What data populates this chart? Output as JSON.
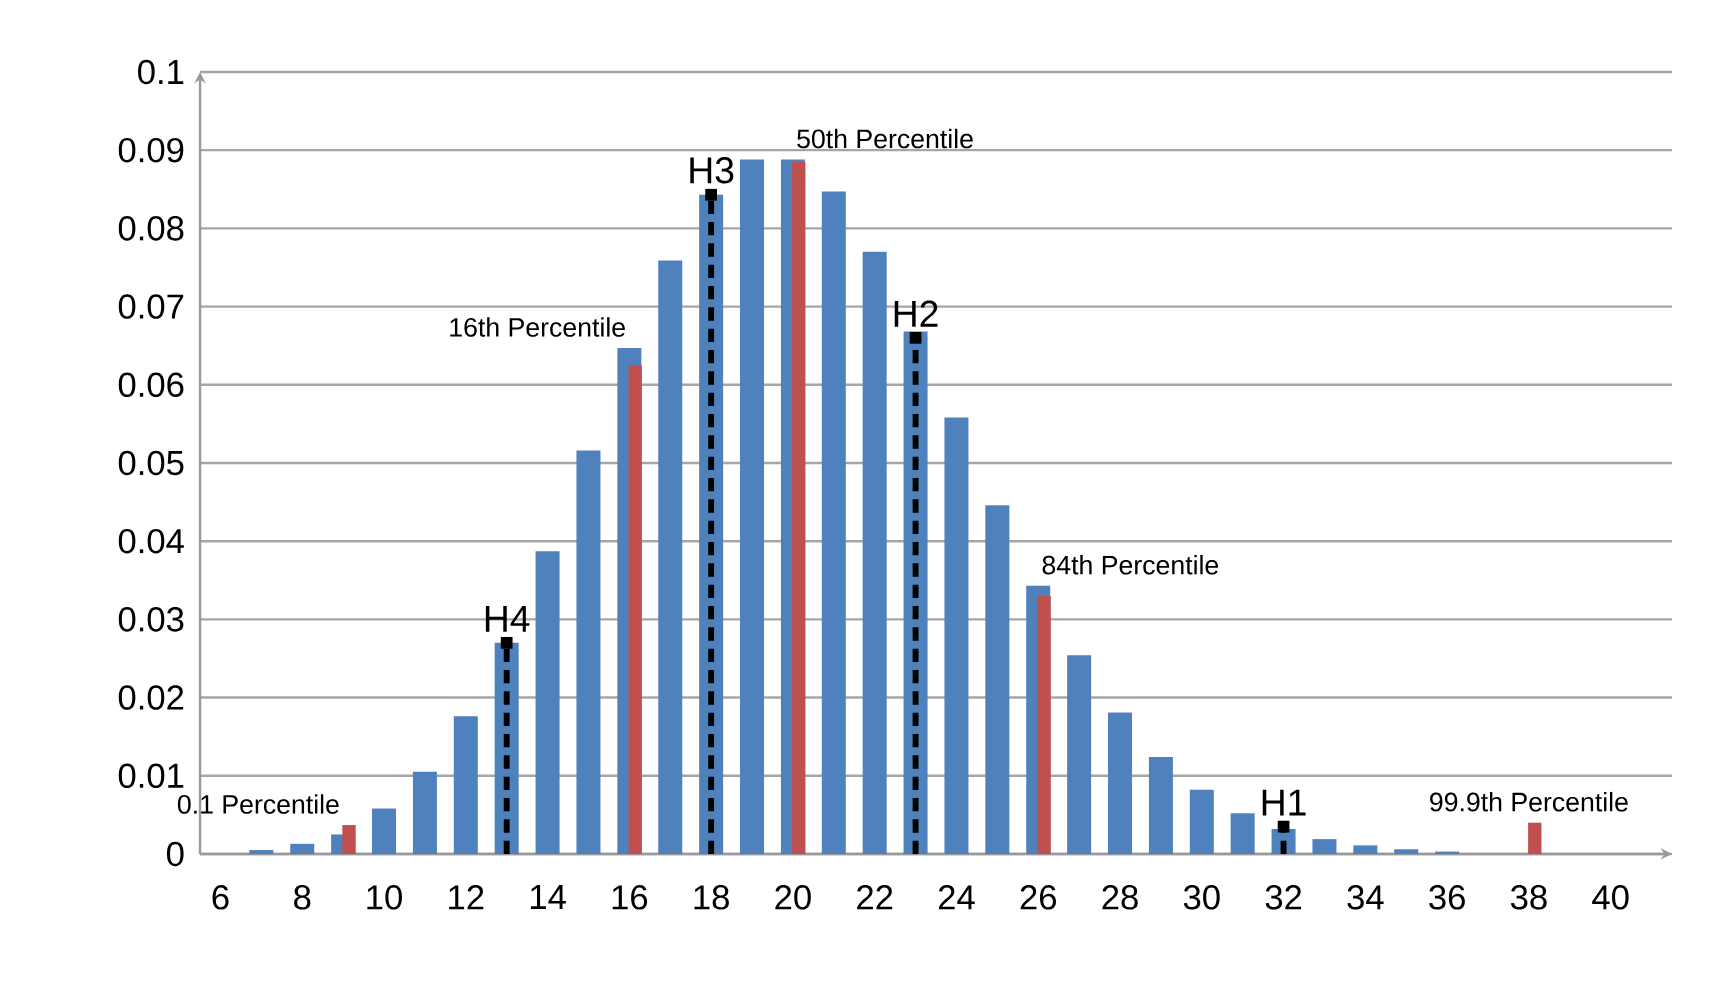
{
  "chart_data": {
    "type": "bar",
    "categories": [
      "6",
      null,
      "8",
      null,
      "10",
      null,
      "12",
      null,
      "14",
      null,
      "16",
      null,
      "18",
      null,
      "20",
      null,
      "22",
      null,
      "24",
      null,
      "26",
      null,
      "28",
      null,
      "30",
      null,
      "32",
      null,
      "34",
      null,
      "36",
      null,
      "38",
      null,
      "40",
      null
    ],
    "series": [
      {
        "color": "#4f81bd",
        "values": [
          0,
          0.0005,
          0.0013,
          0.0025,
          0.0058,
          0.0105,
          0.0176,
          0.027,
          0.0387,
          0.0516,
          0.0647,
          0.0759,
          0.0843,
          0.0888,
          0.0888,
          0.0847,
          0.077,
          0.0668,
          0.0558,
          0.0446,
          0.0343,
          0.0254,
          0.0181,
          0.0124,
          0.0082,
          0.0052,
          0.0032,
          0.0019,
          0.0011,
          0.0006,
          0.0003,
          0,
          0,
          0,
          0,
          0
        ]
      },
      {
        "color": "#c0504d",
        "values": [
          null,
          null,
          null,
          0.0037,
          null,
          null,
          null,
          null,
          null,
          null,
          0.0625,
          null,
          null,
          null,
          0.0885,
          null,
          null,
          null,
          null,
          null,
          0.033,
          null,
          null,
          null,
          null,
          null,
          null,
          null,
          null,
          null,
          null,
          null,
          0.004,
          null,
          null,
          null
        ]
      },
      {
        "type": "lollipop",
        "color": "#000000",
        "line_style": "dashed",
        "values": [
          null,
          null,
          null,
          null,
          null,
          null,
          null,
          0.027,
          null,
          null,
          null,
          null,
          0.0843,
          null,
          null,
          null,
          null,
          0.066,
          null,
          null,
          null,
          null,
          null,
          null,
          null,
          null,
          0.0035,
          null,
          null,
          null,
          null,
          null,
          null,
          null,
          null,
          null
        ]
      }
    ],
    "annotations": [
      "0.1 Percentile",
      "16th Percentile",
      "50th Percentile",
      "84th Percentile",
      "99.9th Percentile",
      "H4",
      "H3",
      "H2",
      "H1"
    ],
    "ylim": [
      0,
      0.1
    ],
    "yticks": [
      0,
      0.01,
      0.02,
      0.03,
      0.04,
      0.05,
      0.06,
      0.07,
      0.08,
      0.09,
      0.1
    ],
    "grid": "y"
  }
}
